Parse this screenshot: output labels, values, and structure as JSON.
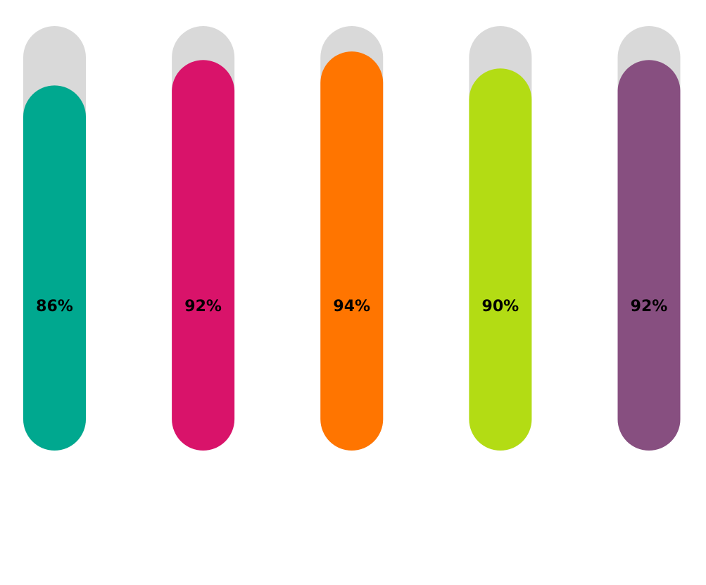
{
  "chart_data": {
    "type": "bar",
    "style": "rounded-capsule-progress",
    "unit": "%",
    "ylim": [
      0,
      100
    ],
    "grid": false,
    "legend": "none",
    "track_color": "#D9D9D9",
    "label_color": "#000000",
    "bars": [
      {
        "value": 86,
        "label": "86%",
        "color": "#00A88F"
      },
      {
        "value": 92,
        "label": "92%",
        "color": "#D9136A"
      },
      {
        "value": 94,
        "label": "94%",
        "color": "#FF7500"
      },
      {
        "value": 90,
        "label": "90%",
        "color": "#B3DC14"
      },
      {
        "value": 92,
        "label": "92%",
        "color": "#874F80"
      }
    ]
  }
}
